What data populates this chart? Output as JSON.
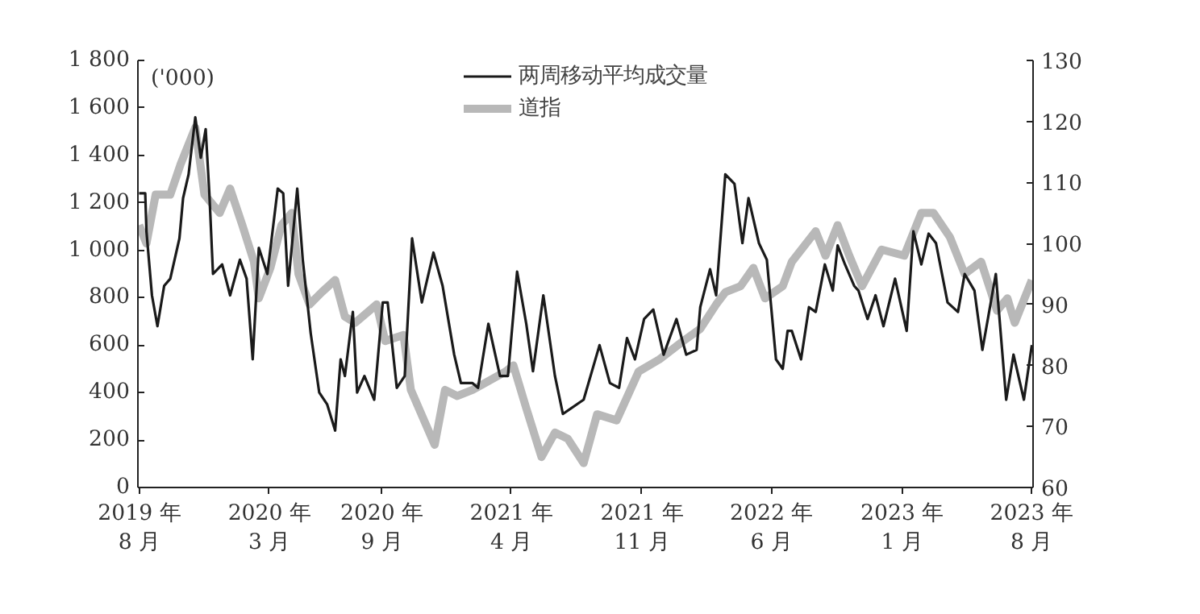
{
  "chart_data": {
    "type": "line",
    "xlim": [
      "2019-07-30",
      "2023-08-04"
    ],
    "xticks": [
      {
        "value": "2019-08-01",
        "label": "2019 年\n8 月"
      },
      {
        "value": "2020-03-01",
        "label": "2020 年\n3 月"
      },
      {
        "value": "2020-09-01",
        "label": "2020 年\n9 月"
      },
      {
        "value": "2021-04-01",
        "label": "2021 年\n4 月"
      },
      {
        "value": "2021-11-01",
        "label": "2021 年\n11 月"
      },
      {
        "value": "2022-06-01",
        "label": "2022 年\n6 月"
      },
      {
        "value": "2023-01-01",
        "label": "2023 年\n1 月"
      },
      {
        "value": "2023-08-01",
        "label": "2023 年\n8 月"
      }
    ],
    "ylim": [
      0,
      1800
    ],
    "yticks": [
      0,
      200,
      400,
      600,
      800,
      {
        "value": 1000,
        "label": "1 000"
      },
      {
        "value": 1200,
        "label": "1 200"
      },
      {
        "value": 1400,
        "label": "1 400"
      },
      {
        "value": 1600,
        "label": "1 600"
      },
      {
        "value": 1800,
        "label": "1 800"
      }
    ],
    "y2lim": [
      60,
      130
    ],
    "y2ticks": [
      60,
      70,
      80,
      90,
      100,
      110,
      120,
      130
    ],
    "annotations": [
      "('000)"
    ],
    "legend": "top",
    "grid": false,
    "line_style": "solid",
    "series": [
      {
        "name": "两周移动平均成交量",
        "color": "#1a1a1a",
        "x": [
          "2019-08-01",
          "2019-08-11",
          "2019-08-13",
          "2019-08-22",
          "2019-08-31",
          "2019-09-11",
          "2019-09-21",
          "2019-10-06",
          "2019-10-12",
          "2019-10-21",
          "2019-11-01",
          "2019-11-10",
          "2019-11-18",
          "2019-11-24",
          "2019-11-30",
          "2019-12-15",
          "2019-12-28",
          "2020-01-13",
          "2020-01-24",
          "2020-02-03",
          "2020-02-13",
          "2020-02-27",
          "2020-03-15",
          "2020-03-24",
          "2020-04-01",
          "2020-04-16",
          "2020-04-25",
          "2020-05-08",
          "2020-05-22",
          "2020-06-04",
          "2020-06-17",
          "2020-06-26",
          "2020-07-03",
          "2020-07-16",
          "2020-07-23",
          "2020-08-04",
          "2020-08-20",
          "2020-09-03",
          "2020-09-11",
          "2020-09-26",
          "2020-10-09",
          "2020-10-21",
          "2020-11-06",
          "2020-11-25",
          "2020-12-10",
          "2020-12-29",
          "2021-01-09",
          "2021-01-28",
          "2021-02-06",
          "2021-02-23",
          "2021-03-14",
          "2021-03-27",
          "2021-04-11",
          "2021-04-26",
          "2021-05-07",
          "2021-05-24",
          "2021-06-12",
          "2021-06-25",
          "2021-07-29",
          "2021-08-24",
          "2021-09-10",
          "2021-09-25",
          "2021-10-08",
          "2021-10-21",
          "2021-11-05",
          "2021-11-20",
          "2021-12-07",
          "2021-12-28",
          "2022-01-13",
          "2022-01-30",
          "2022-02-05",
          "2022-02-21",
          "2022-03-03",
          "2022-03-18",
          "2022-04-02",
          "2022-04-15",
          "2022-04-25",
          "2022-05-12",
          "2022-05-25",
          "2022-06-09",
          "2022-06-20",
          "2022-06-28",
          "2022-07-05",
          "2022-07-20",
          "2022-08-02",
          "2022-08-13",
          "2022-08-28",
          "2022-09-10",
          "2022-09-18",
          "2022-09-30",
          "2022-10-15",
          "2022-10-22",
          "2022-11-06",
          "2022-11-19",
          "2022-12-02",
          "2022-12-21",
          "2023-01-09",
          "2023-01-20",
          "2023-02-02",
          "2023-02-14",
          "2023-02-26",
          "2023-03-17",
          "2023-04-03",
          "2023-04-14",
          "2023-04-30",
          "2023-05-13",
          "2023-06-04",
          "2023-06-21",
          "2023-07-03",
          "2023-07-20",
          "2023-08-02"
        ],
        "values": [
          1240,
          1240,
          1080,
          810,
          680,
          850,
          880,
          1050,
          1220,
          1320,
          1560,
          1390,
          1510,
          1240,
          900,
          940,
          810,
          960,
          880,
          540,
          1010,
          900,
          1260,
          1240,
          850,
          1260,
          960,
          650,
          400,
          350,
          240,
          540,
          470,
          740,
          400,
          470,
          370,
          780,
          780,
          420,
          470,
          1050,
          780,
          990,
          850,
          560,
          440,
          440,
          420,
          690,
          470,
          470,
          910,
          690,
          490,
          810,
          470,
          310,
          370,
          600,
          440,
          420,
          630,
          540,
          710,
          750,
          560,
          710,
          560,
          580,
          760,
          920,
          810,
          1320,
          1280,
          1030,
          1220,
          1030,
          960,
          540,
          500,
          660,
          660,
          540,
          760,
          740,
          940,
          830,
          1020,
          940,
          850,
          830,
          710,
          810,
          680,
          880,
          660,
          1080,
          940,
          1070,
          1030,
          780,
          740,
          900,
          830,
          580,
          900,
          370,
          560,
          370,
          600
        ]
      },
      {
        "name": "道指",
        "color": "#b8b8b8",
        "axis": "y2",
        "x": [
          "2019-08-01",
          "2019-08-13",
          "2019-08-28",
          "2019-09-21",
          "2019-10-08",
          "2019-11-01",
          "2019-11-16",
          "2019-12-11",
          "2019-12-28",
          "2020-01-17",
          "2020-02-05",
          "2020-02-13",
          "2020-03-03",
          "2020-03-21",
          "2020-04-07",
          "2020-04-18",
          "2020-05-06",
          "2020-05-26",
          "2020-06-17",
          "2020-07-03",
          "2020-07-20",
          "2020-08-24",
          "2020-09-07",
          "2020-10-07",
          "2020-10-19",
          "2020-11-27",
          "2020-12-14",
          "2021-01-03",
          "2021-01-28",
          "2021-02-15",
          "2021-03-23",
          "2021-04-05",
          "2021-04-26",
          "2021-05-21",
          "2021-06-12",
          "2021-07-03",
          "2021-07-29",
          "2021-08-20",
          "2021-09-21",
          "2021-10-27",
          "2021-11-30",
          "2022-01-08",
          "2022-02-05",
          "2022-03-03",
          "2022-03-18",
          "2022-04-12",
          "2022-05-03",
          "2022-05-22",
          "2022-06-20",
          "2022-07-05",
          "2022-08-13",
          "2022-08-29",
          "2022-09-18",
          "2022-10-07",
          "2022-10-28",
          "2022-11-29",
          "2023-01-05",
          "2023-02-02",
          "2023-02-22",
          "2023-03-21",
          "2023-04-14",
          "2023-05-11",
          "2023-06-06",
          "2023-06-23",
          "2023-07-05",
          "2023-08-02"
        ],
        "values": [
          103,
          100,
          108,
          108,
          113,
          119,
          108,
          105,
          109,
          103,
          97,
          91,
          96,
          103,
          105,
          95,
          90,
          92,
          94,
          88,
          87,
          90,
          84,
          85,
          76,
          67,
          76,
          75,
          76,
          77,
          79,
          80,
          73,
          65,
          69,
          68,
          64,
          72,
          71,
          79,
          81,
          84,
          86,
          90,
          92,
          93,
          96,
          91,
          93,
          97,
          102,
          98,
          103,
          98,
          93,
          99,
          98,
          105,
          105,
          101,
          95,
          97,
          89,
          91,
          87,
          94
        ]
      }
    ]
  }
}
